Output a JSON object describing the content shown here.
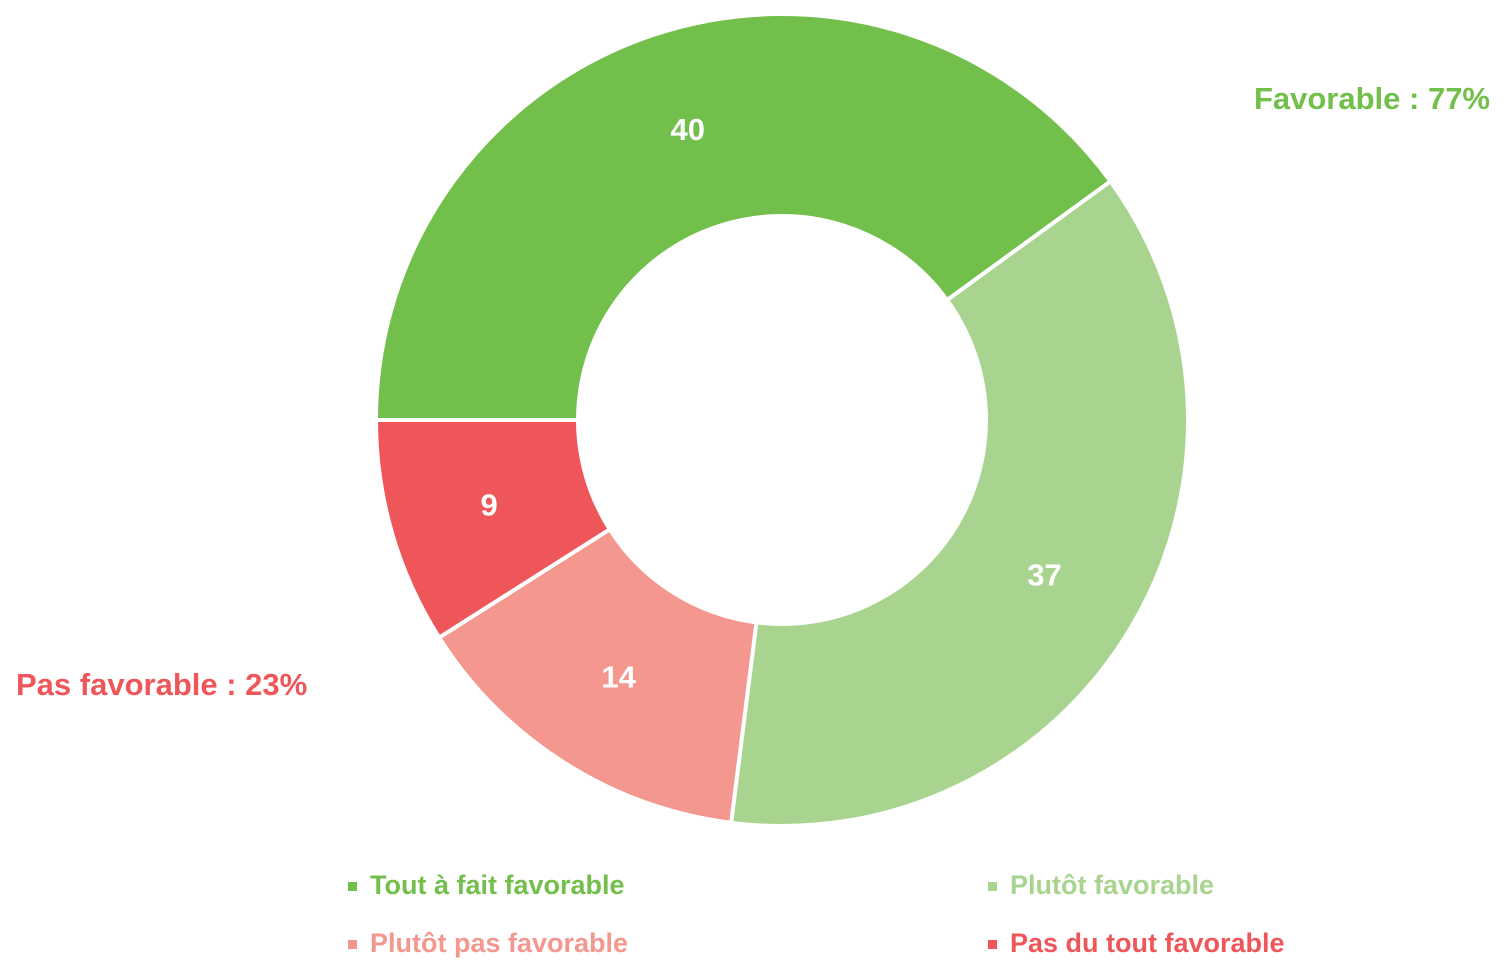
{
  "chart_data": {
    "type": "donut",
    "categories": [
      "Tout à fait favorable",
      "Plutôt favorable",
      "Plutôt pas favorable",
      "Pas du tout favorable"
    ],
    "values": [
      40,
      37,
      14,
      9
    ],
    "colors": [
      "#72bf4b",
      "#a9d48f",
      "#f4978e",
      "#ef565a"
    ],
    "annotations": [
      {
        "text": "Favorable : 77%",
        "color": "#72bf4b"
      },
      {
        "text": "Pas favorable : 23%",
        "color": "#ef565a"
      }
    ],
    "legend": "bottom"
  }
}
